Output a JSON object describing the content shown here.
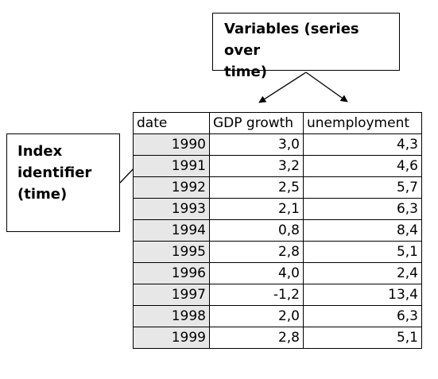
{
  "callouts": {
    "variables_lines": [
      "Variables (series over",
      "time)"
    ],
    "index_lines": [
      "Index",
      "identifier",
      "(time)"
    ]
  },
  "table": {
    "headers": [
      "date",
      "GDP growth",
      "unemployment"
    ],
    "rows": [
      [
        "1990",
        "3,0",
        "4,3"
      ],
      [
        "1991",
        "3,2",
        "4,6"
      ],
      [
        "1992",
        "2,5",
        "5,7"
      ],
      [
        "1993",
        "2,1",
        "6,3"
      ],
      [
        "1994",
        "0,8",
        "8,4"
      ],
      [
        "1995",
        "2,8",
        "5,1"
      ],
      [
        "1996",
        "4,0",
        "2,4"
      ],
      [
        "1997",
        "-1,2",
        "13,4"
      ],
      [
        "1998",
        "2,0",
        "6,3"
      ],
      [
        "1999",
        "2,8",
        "5,1"
      ]
    ]
  },
  "colors": {
    "line": "#000000",
    "index_shading": "#e7e7e7",
    "background": "#ffffff"
  }
}
